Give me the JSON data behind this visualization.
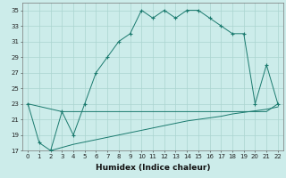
{
  "xlabel": "Humidex (Indice chaleur)",
  "x_main": [
    0,
    1,
    2,
    3,
    4,
    5,
    6,
    7,
    8,
    9,
    10,
    11,
    12,
    13,
    14,
    15,
    16,
    17,
    18,
    19,
    20,
    21,
    22
  ],
  "y_main": [
    23,
    18,
    17,
    22,
    19,
    23,
    27,
    29,
    31,
    32,
    35,
    34,
    35,
    34,
    35,
    35,
    34,
    33,
    32,
    32,
    23,
    28,
    23
  ],
  "x_flat": [
    0,
    3,
    9,
    20,
    21,
    22
  ],
  "y_flat": [
    23,
    22,
    22,
    22,
    22,
    23
  ],
  "x_rise": [
    2,
    3,
    4,
    5,
    6,
    7,
    8,
    9,
    10,
    11,
    12,
    13,
    14,
    15,
    16,
    17,
    18,
    19,
    20,
    21,
    22
  ],
  "y_rise": [
    17,
    17.4,
    17.8,
    18.1,
    18.4,
    18.7,
    19.0,
    19.3,
    19.6,
    19.9,
    20.2,
    20.5,
    20.8,
    21.0,
    21.2,
    21.4,
    21.7,
    21.9,
    22.1,
    22.3,
    22.6
  ],
  "color": "#1a7a6e",
  "bg_color": "#ccecea",
  "grid_color": "#aad4d0",
  "ylim": [
    17,
    36
  ],
  "yticks": [
    17,
    19,
    21,
    23,
    25,
    27,
    29,
    31,
    33,
    35
  ],
  "xticks": [
    0,
    1,
    2,
    3,
    4,
    5,
    6,
    7,
    8,
    9,
    10,
    11,
    12,
    13,
    14,
    15,
    16,
    17,
    18,
    19,
    20,
    21,
    22
  ],
  "xlabel_fontsize": 6.5,
  "tick_fontsize": 5.0
}
